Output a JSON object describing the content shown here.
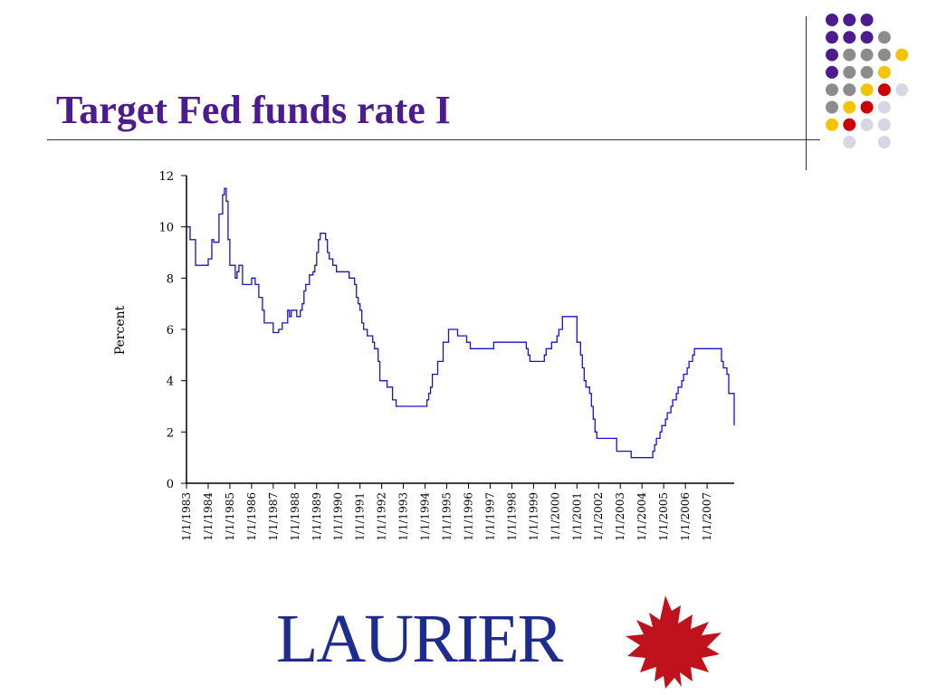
{
  "slide": {
    "title": "Target Fed funds rate I"
  },
  "decor": {
    "dot_colors": {
      "purple": "#4B1B8F",
      "gray": "#8C8C8C",
      "yellow": "#F2C500",
      "red": "#CC0000",
      "lavender": "#D6D6E4"
    },
    "dot_rows": [
      [
        "purple",
        "purple",
        "purple"
      ],
      [
        "purple",
        "purple",
        "purple",
        "gray"
      ],
      [
        "purple",
        "gray",
        "gray",
        "gray",
        "yellow"
      ],
      [
        "purple",
        "gray",
        "gray",
        "yellow"
      ],
      [
        "gray",
        "gray",
        "yellow",
        "red",
        "lavender"
      ],
      [
        "gray",
        "yellow",
        "red",
        "lavender"
      ],
      [
        "yellow",
        "red",
        "lavender",
        "lavender"
      ],
      [
        "",
        "lavender",
        "",
        "lavender"
      ]
    ]
  },
  "logo": {
    "text": "LAURIER",
    "text_color": "#1E2B8F",
    "leaf_color": "#C0121C",
    "icon": "maple-leaf-icon"
  },
  "chart_data": {
    "type": "line",
    "title": "",
    "xlabel": "",
    "ylabel": "Percent",
    "line_color": "#1414C8",
    "ylim": [
      0,
      12
    ],
    "yticks": [
      0,
      2,
      4,
      6,
      8,
      10,
      12
    ],
    "x_range": [
      "1/1/1983",
      "4/1/2008"
    ],
    "xticks": [
      "1/1/1983",
      "1/1/1984",
      "1/1/1985",
      "1/1/1986",
      "1/1/1987",
      "1/1/1988",
      "1/1/1989",
      "1/1/1990",
      "1/1/1991",
      "1/1/1992",
      "1/1/1993",
      "1/1/1994",
      "1/1/1995",
      "1/1/1996",
      "1/1/1997",
      "1/1/1998",
      "1/1/1999",
      "1/1/2000",
      "1/1/2001",
      "1/1/2002",
      "1/1/2003",
      "1/1/2004",
      "1/1/2005",
      "1/1/2006",
      "1/1/2007"
    ],
    "series": [
      {
        "step": true,
        "x": [
          "1/1/1983",
          "3/1/1983",
          "6/1/1983",
          "9/1/1983",
          "1/1/1984",
          "3/1/1984",
          "4/1/1984",
          "6/1/1984",
          "7/1/1984",
          "8/1/1984",
          "9/1/1984",
          "10/1/1984",
          "11/1/1984",
          "12/1/1984",
          "1/1/1985",
          "4/1/1985",
          "5/1/1985",
          "6/1/1985",
          "8/1/1985",
          "11/1/1985",
          "1/1/1986",
          "3/1/1986",
          "4/1/1986",
          "5/1/1986",
          "7/1/1986",
          "8/1/1986",
          "1/1/1987",
          "4/1/1987",
          "6/1/1987",
          "9/1/1987",
          "10/1/1987",
          "11/1/1987",
          "2/1/1988",
          "4/1/1988",
          "5/1/1988",
          "6/1/1988",
          "7/1/1988",
          "9/1/1988",
          "11/1/1988",
          "12/1/1988",
          "1/1/1989",
          "2/1/1989",
          "3/1/1989",
          "5/1/1989",
          "6/1/1989",
          "7/1/1989",
          "8/1/1989",
          "10/1/1989",
          "12/1/1989",
          "7/1/1990",
          "10/1/1990",
          "11/1/1990",
          "12/1/1990",
          "1/1/1991",
          "2/1/1991",
          "3/1/1991",
          "5/1/1991",
          "8/1/1991",
          "9/1/1991",
          "11/1/1991",
          "12/1/1991",
          "1/1/1992",
          "4/1/1992",
          "7/1/1992",
          "9/1/1992",
          "2/1/1994",
          "3/1/1994",
          "4/1/1994",
          "5/1/1994",
          "8/1/1994",
          "11/1/1994",
          "2/1/1995",
          "7/1/1995",
          "12/1/1995",
          "2/1/1996",
          "3/1/1997",
          "9/1/1998",
          "10/1/1998",
          "11/1/1998",
          "7/1/1999",
          "8/1/1999",
          "11/1/1999",
          "2/1/2000",
          "3/1/2000",
          "5/1/2000",
          "1/1/2001",
          "2/1/2001",
          "3/1/2001",
          "4/1/2001",
          "5/1/2001",
          "6/1/2001",
          "8/1/2001",
          "9/1/2001",
          "10/1/2001",
          "11/1/2001",
          "12/1/2001",
          "11/1/2002",
          "7/1/2003",
          "7/1/2004",
          "8/1/2004",
          "9/1/2004",
          "11/1/2004",
          "12/1/2004",
          "2/1/2005",
          "3/1/2005",
          "5/1/2005",
          "6/1/2005",
          "8/1/2005",
          "9/1/2005",
          "11/1/2005",
          "12/1/2005",
          "2/1/2006",
          "3/1/2006",
          "5/1/2006",
          "6/1/2006",
          "9/1/2007",
          "10/1/2007",
          "12/1/2007",
          "1/1/2008",
          "4/1/2008"
        ],
        "values": [
          10.0,
          9.5,
          8.5,
          8.5,
          8.75,
          9.5,
          9.4,
          9.4,
          10.5,
          10.5,
          11.25,
          11.5,
          11.0,
          9.5,
          8.5,
          8.0,
          8.25,
          8.5,
          7.75,
          7.75,
          8.0,
          7.75,
          7.75,
          7.25,
          6.75,
          6.25,
          5.875,
          6.0,
          6.25,
          6.75,
          6.5,
          6.75,
          6.5,
          6.75,
          7.0,
          7.5,
          7.75,
          8.125,
          8.25,
          8.5,
          9.0,
          9.5,
          9.75,
          9.75,
          9.5,
          9.0,
          8.75,
          8.5,
          8.25,
          8.0,
          7.75,
          7.25,
          7.0,
          6.75,
          6.25,
          6.0,
          5.75,
          5.5,
          5.25,
          4.75,
          4.0,
          4.0,
          3.75,
          3.25,
          3.0,
          3.25,
          3.5,
          3.75,
          4.25,
          4.75,
          5.5,
          6.0,
          5.75,
          5.5,
          5.25,
          5.5,
          5.25,
          5.0,
          4.75,
          5.0,
          5.25,
          5.5,
          5.75,
          6.0,
          6.5,
          5.5,
          5.5,
          5.0,
          4.5,
          4.0,
          3.75,
          3.5,
          3.0,
          2.5,
          2.0,
          1.75,
          1.25,
          1.0,
          1.25,
          1.5,
          1.75,
          2.0,
          2.25,
          2.5,
          2.75,
          3.0,
          3.25,
          3.5,
          3.75,
          4.0,
          4.25,
          4.5,
          4.75,
          5.0,
          5.25,
          4.75,
          4.5,
          4.25,
          3.5,
          2.25
        ]
      }
    ]
  }
}
